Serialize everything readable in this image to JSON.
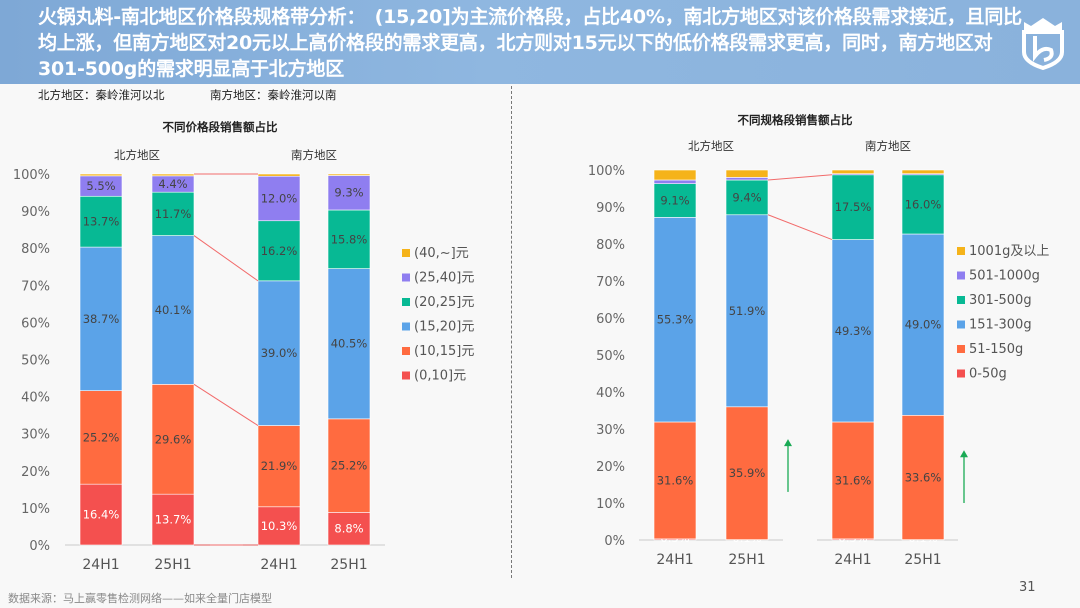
{
  "header": {
    "title": "火锅丸料-南北地区价格段规格带分析：　(15,20]为主流价格段，占比40%，南北方地区对该价格段需求接近，且同比均上涨，但南方地区对20元以上高价格段的需求更高，北方则对15元以下的低价格段需求更高，同时，南方地区对301-500g的需求明显高于北方地区",
    "logo_icon": "shield-crown-logo"
  },
  "notes": {
    "north": "北方地区：秦岭淮河以北",
    "south": "南方地区：秦岭淮河以南"
  },
  "footer": {
    "source": "数据来源：马上赢零售检测网络——如来全量门店模型",
    "page_number": "31"
  },
  "chart_data": [
    {
      "type": "bar",
      "stacked": true,
      "title": "不同价格段销售额占比",
      "groups": [
        "北方地区",
        "南方地区"
      ],
      "categories": [
        "24H1",
        "25H1",
        "24H1",
        "25H1"
      ],
      "category_groups": [
        0,
        0,
        1,
        1
      ],
      "ylim": [
        0,
        100
      ],
      "yticks": [
        "0%",
        "10%",
        "20%",
        "30%",
        "40%",
        "50%",
        "60%",
        "70%",
        "80%",
        "90%",
        "100%"
      ],
      "legend_position": "right",
      "series": [
        {
          "name": "(0,10]元",
          "color": "#f4504f",
          "label_color": "#ffffff",
          "values": [
            16.4,
            13.7,
            10.3,
            8.8
          ],
          "labels": [
            "16.4%",
            "13.7%",
            "10.3%",
            "8.8%"
          ]
        },
        {
          "name": "(10,15]元",
          "color": "#ff6b40",
          "label_color": "#444444",
          "values": [
            25.2,
            29.6,
            21.9,
            25.2
          ],
          "labels": [
            "25.2%",
            "29.6%",
            "21.9%",
            "25.2%"
          ]
        },
        {
          "name": "(15,20]元",
          "color": "#5ba3e8",
          "label_color": "#444444",
          "values": [
            38.7,
            40.1,
            39.0,
            40.5
          ],
          "labels": [
            "38.7%",
            "40.1%",
            "39.0%",
            "40.5%"
          ]
        },
        {
          "name": "(20,25]元",
          "color": "#07b994",
          "label_color": "#444444",
          "values": [
            13.7,
            11.7,
            16.2,
            15.8
          ],
          "labels": [
            "13.7%",
            "11.7%",
            "16.2%",
            "15.8%"
          ]
        },
        {
          "name": "(25,40]元",
          "color": "#8f7ef0",
          "label_color": "#444444",
          "values": [
            5.5,
            4.4,
            12.0,
            9.3
          ],
          "labels": [
            "5.5%",
            "4.4%",
            "12.0%",
            "9.3%"
          ]
        },
        {
          "name": "(40,~]元",
          "color": "#f5b31a",
          "label_color": "#444444",
          "values": [
            0.5,
            0.5,
            0.6,
            0.4
          ],
          "labels": [
            "",
            "",
            "",
            ""
          ]
        }
      ],
      "connectors": [
        {
          "from_bar": 1,
          "to_bar": 2,
          "level": "top"
        },
        {
          "from_bar": 1,
          "to_bar": 2,
          "level": "stack",
          "series_index": 2
        },
        {
          "from_bar": 1,
          "to_bar": 2,
          "level": "stack",
          "series_index": 1
        },
        {
          "from_bar": 1,
          "to_bar": 2,
          "level": "bottom"
        }
      ]
    },
    {
      "type": "bar",
      "stacked": true,
      "title": "不同规格段销售额占比",
      "groups": [
        "北方地区",
        "南方地区"
      ],
      "categories": [
        "24H1",
        "25H1",
        "24H1",
        "25H1"
      ],
      "category_groups": [
        0,
        0,
        1,
        1
      ],
      "ylim": [
        0,
        100
      ],
      "yticks": [
        "0%",
        "10%",
        "20%",
        "30%",
        "40%",
        "50%",
        "60%",
        "70%",
        "80%",
        "90%",
        "100%"
      ],
      "legend_position": "right",
      "series": [
        {
          "name": "0-50g",
          "color": "#f4504f",
          "label_color": "#ffffff",
          "values": [
            0.3,
            0.1,
            0.3,
            0.1
          ],
          "labels": [
            "0.3%",
            "0.1%",
            "0.3%",
            "0.1%"
          ]
        },
        {
          "name": "51-150g",
          "color": "#ff6b40",
          "label_color": "#444444",
          "values": [
            31.6,
            35.9,
            31.6,
            33.6
          ],
          "labels": [
            "31.6%",
            "35.9%",
            "31.6%",
            "33.6%"
          ]
        },
        {
          "name": "151-300g",
          "color": "#5ba3e8",
          "label_color": "#444444",
          "values": [
            55.3,
            51.9,
            49.3,
            49.0
          ],
          "labels": [
            "55.3%",
            "51.9%",
            "49.3%",
            "49.0%"
          ]
        },
        {
          "name": "301-500g",
          "color": "#07b994",
          "label_color": "#444444",
          "values": [
            9.1,
            9.4,
            17.5,
            16.0
          ],
          "labels": [
            "9.1%",
            "9.4%",
            "17.5%",
            "16.0%"
          ]
        },
        {
          "name": "501-1000g",
          "color": "#8f7ef0",
          "label_color": "#444444",
          "values": [
            1.0,
            0.7,
            0.3,
            0.3
          ],
          "labels": [
            "",
            "",
            "",
            ""
          ]
        },
        {
          "name": "1001g及以上",
          "color": "#f5b31a",
          "label_color": "#444444",
          "values": [
            2.7,
            2.0,
            1.0,
            1.0
          ],
          "labels": [
            "",
            "",
            "",
            ""
          ]
        }
      ],
      "connectors": [
        {
          "from_bar": 1,
          "to_bar": 2,
          "level": "stack",
          "series_index": 3
        },
        {
          "from_bar": 1,
          "to_bar": 2,
          "level": "stack",
          "series_index": 2
        }
      ],
      "annotations": [
        {
          "type": "arrow-up",
          "color": "#1aaa55",
          "after_bar": 1,
          "y_from": 13,
          "y_to": 27
        },
        {
          "type": "arrow-up",
          "color": "#1aaa55",
          "after_bar": 3,
          "y_from": 10,
          "y_to": 24
        }
      ]
    }
  ]
}
